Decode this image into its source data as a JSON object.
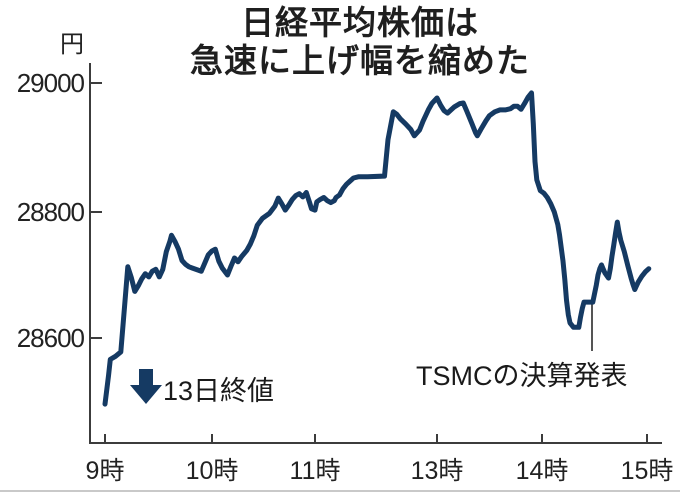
{
  "figure": {
    "title_line1": "日経平均株価は",
    "title_line2": "急速に上げ幅を縮めた",
    "unit_label": "円",
    "annotation_prev_close": "13日終値",
    "annotation_tsmc": "TSMCの決算発表"
  },
  "axes": {
    "y_tick_labels": [
      "29000",
      "28800",
      "28600"
    ],
    "x_tick_labels": [
      "9時",
      "10時",
      "11時",
      "13時",
      "14時",
      "15時"
    ]
  },
  "colors": {
    "line": "#153a63",
    "arrow": "#153a63",
    "axis": "#3c3c3c",
    "callout": "#555555",
    "text": "#1a1a1a"
  },
  "chart_data": {
    "type": "line",
    "title": "日経平均株価は急速に上げ幅を縮めた",
    "xlabel": "",
    "ylabel": "円",
    "ylim": [
      28450,
      29050
    ],
    "y_ticks": [
      28600,
      28800,
      29000
    ],
    "x_tick_labels": [
      "9時",
      "10時",
      "11時",
      "13時",
      "14時",
      "15時"
    ],
    "grid": false,
    "legend": "none",
    "sessions": [
      "09:00-11:30",
      "12:30-15:00"
    ],
    "annotations": [
      {
        "text": "13日終値",
        "icon": "down-arrow"
      },
      {
        "text": "TSMCの決算発表",
        "time": "14:30"
      }
    ],
    "x_unit": "minutes_from_midnight",
    "points": [
      [
        540,
        28495
      ],
      [
        542,
        28540
      ],
      [
        543,
        28566
      ],
      [
        546,
        28571
      ],
      [
        549,
        28578
      ],
      [
        551,
        28645
      ],
      [
        553,
        28713
      ],
      [
        555,
        28696
      ],
      [
        557,
        28674
      ],
      [
        559,
        28683
      ],
      [
        561,
        28694
      ],
      [
        563,
        28702
      ],
      [
        565,
        28697
      ],
      [
        567,
        28706
      ],
      [
        569,
        28709
      ],
      [
        571,
        28697
      ],
      [
        573,
        28709
      ],
      [
        575,
        28737
      ],
      [
        577,
        28753
      ],
      [
        578,
        28763
      ],
      [
        580,
        28753
      ],
      [
        582,
        28741
      ],
      [
        584,
        28723
      ],
      [
        586,
        28717
      ],
      [
        588,
        28713
      ],
      [
        590,
        28711
      ],
      [
        593,
        28708
      ],
      [
        595,
        28706
      ],
      [
        597,
        28719
      ],
      [
        599,
        28732
      ],
      [
        601,
        28738
      ],
      [
        603,
        28741
      ],
      [
        605,
        28722
      ],
      [
        607,
        28711
      ],
      [
        610,
        28700
      ],
      [
        612,
        28714
      ],
      [
        614,
        28727
      ],
      [
        616,
        28721
      ],
      [
        618,
        28729
      ],
      [
        621,
        28739
      ],
      [
        623,
        28749
      ],
      [
        625,
        28762
      ],
      [
        627,
        28779
      ],
      [
        630,
        28790
      ],
      [
        632,
        28794
      ],
      [
        634,
        28798
      ],
      [
        637,
        28809
      ],
      [
        639,
        28822
      ],
      [
        641,
        28813
      ],
      [
        643,
        28803
      ],
      [
        645,
        28811
      ],
      [
        647,
        28820
      ],
      [
        649,
        28826
      ],
      [
        651,
        28829
      ],
      [
        653,
        28824
      ],
      [
        655,
        28831
      ],
      [
        657,
        28814
      ],
      [
        658,
        28805
      ],
      [
        660,
        28803
      ],
      [
        661,
        28816
      ],
      [
        663,
        28820
      ],
      [
        665,
        28823
      ],
      [
        667,
        28818
      ],
      [
        669,
        28815
      ],
      [
        671,
        28818
      ],
      [
        672,
        28823
      ],
      [
        674,
        28827
      ],
      [
        676,
        28837
      ],
      [
        678,
        28844
      ],
      [
        680,
        28849
      ],
      [
        682,
        28854
      ],
      [
        685,
        28856
      ],
      [
        690,
        28856
      ],
      [
        750,
        28857
      ],
      [
        752,
        28915
      ],
      [
        755,
        28959
      ],
      [
        757,
        28955
      ],
      [
        759,
        28948
      ],
      [
        762,
        28940
      ],
      [
        765,
        28931
      ],
      [
        767,
        28921
      ],
      [
        770,
        28930
      ],
      [
        772,
        28944
      ],
      [
        775,
        28962
      ],
      [
        777,
        28972
      ],
      [
        780,
        28981
      ],
      [
        782,
        28970
      ],
      [
        784,
        28961
      ],
      [
        786,
        28957
      ],
      [
        788,
        28962
      ],
      [
        790,
        28967
      ],
      [
        793,
        28972
      ],
      [
        795,
        28973
      ],
      [
        797,
        28960
      ],
      [
        800,
        28940
      ],
      [
        802,
        28926
      ],
      [
        803,
        28921
      ],
      [
        805,
        28931
      ],
      [
        808,
        28945
      ],
      [
        810,
        28953
      ],
      [
        813,
        28959
      ],
      [
        816,
        28962
      ],
      [
        819,
        28962
      ],
      [
        822,
        28964
      ],
      [
        824,
        28968
      ],
      [
        826,
        28968
      ],
      [
        828,
        28963
      ],
      [
        830,
        28972
      ],
      [
        832,
        28982
      ],
      [
        834,
        28989
      ],
      [
        835,
        28940
      ],
      [
        836,
        28880
      ],
      [
        837,
        28851
      ],
      [
        839,
        28834
      ],
      [
        841,
        28830
      ],
      [
        843,
        28823
      ],
      [
        845,
        28813
      ],
      [
        847,
        28800
      ],
      [
        849,
        28780
      ],
      [
        850,
        28764
      ],
      [
        852,
        28722
      ],
      [
        853,
        28693
      ],
      [
        854,
        28660
      ],
      [
        855,
        28637
      ],
      [
        856,
        28624
      ],
      [
        858,
        28617
      ],
      [
        861,
        28617
      ],
      [
        862,
        28633
      ],
      [
        863,
        28647
      ],
      [
        864,
        28657
      ],
      [
        866,
        28657
      ],
      [
        869,
        28657
      ],
      [
        871,
        28684
      ],
      [
        872,
        28700
      ],
      [
        873,
        28710
      ],
      [
        874,
        28716
      ],
      [
        875,
        28709
      ],
      [
        876,
        28703
      ],
      [
        878,
        28695
      ],
      [
        879,
        28710
      ],
      [
        880,
        28730
      ],
      [
        881,
        28748
      ],
      [
        882,
        28766
      ],
      [
        883,
        28784
      ],
      [
        884,
        28768
      ],
      [
        885,
        28755
      ],
      [
        887,
        28737
      ],
      [
        889,
        28715
      ],
      [
        891,
        28694
      ],
      [
        892,
        28685
      ],
      [
        893,
        28677
      ],
      [
        894,
        28683
      ],
      [
        895,
        28689
      ],
      [
        897,
        28698
      ],
      [
        899,
        28705
      ],
      [
        901,
        28710
      ]
    ]
  }
}
